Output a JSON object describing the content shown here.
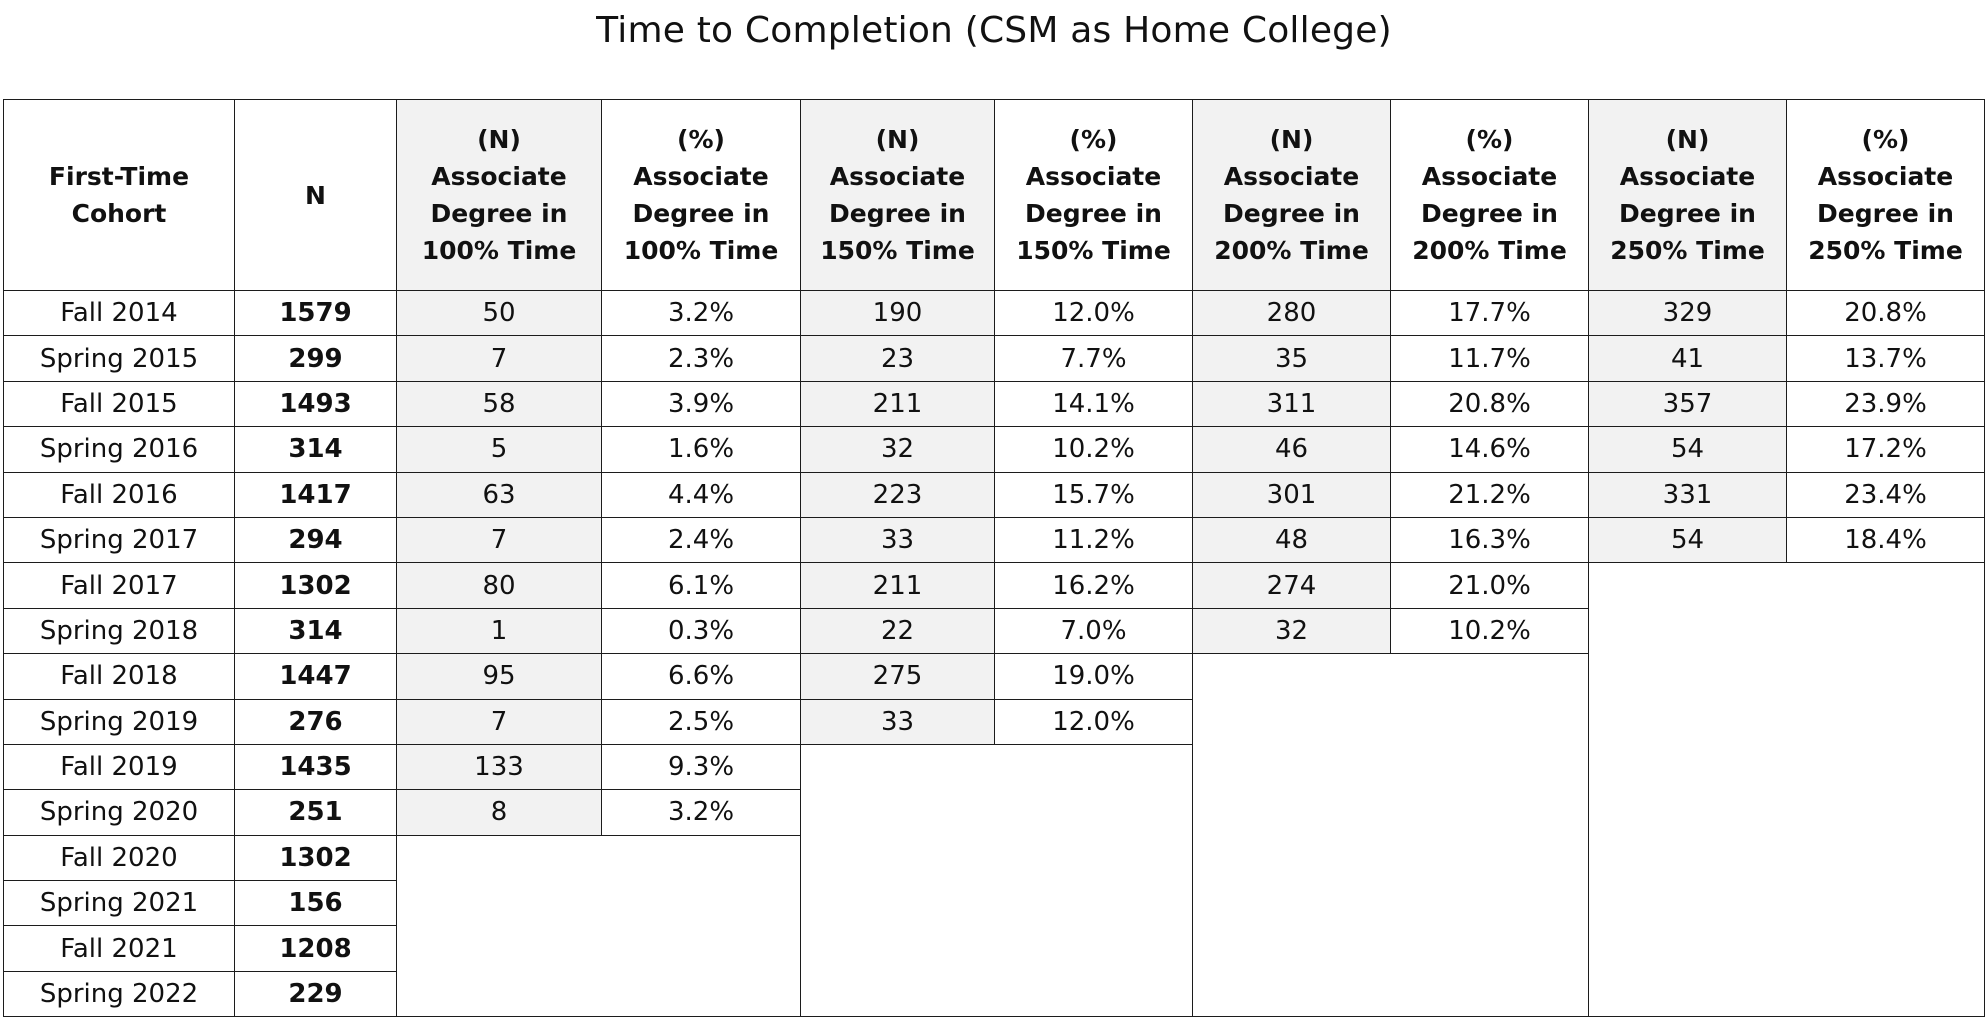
{
  "chart_data": {
    "type": "table",
    "title": "Time to Completion (CSM as Home College)",
    "columns": [
      "First-Time Cohort",
      "N",
      "(N) Associate Degree in 100% Time",
      "(%) Associate Degree in 100% Time",
      "(N) Associate Degree in 150% Time",
      "(%) Associate Degree in 150% Time",
      "(N) Associate Degree in 200% Time",
      "(%) Associate Degree in 200% Time",
      "(N) Associate Degree in 250% Time",
      "(%) Associate Degree in 250% Time"
    ],
    "header_lines": [
      [
        "First-Time",
        "Cohort"
      ],
      [
        "N"
      ],
      [
        "(N)",
        "Associate",
        "Degree in",
        "100% Time"
      ],
      [
        "(%)",
        "Associate",
        "Degree in",
        "100% Time"
      ],
      [
        "(N)",
        "Associate",
        "Degree in",
        "150% Time"
      ],
      [
        "(%)",
        "Associate",
        "Degree in",
        "150% Time"
      ],
      [
        "(N)",
        "Associate",
        "Degree in",
        "200% Time"
      ],
      [
        "(%)",
        "Associate",
        "Degree in",
        "200% Time"
      ],
      [
        "(N)",
        "Associate",
        "Degree in",
        "250% Time"
      ],
      [
        "(%)",
        "Associate",
        "Degree in",
        "250% Time"
      ]
    ],
    "rows": [
      [
        "Fall 2014",
        "1579",
        "50",
        "3.2%",
        "190",
        "12.0%",
        "280",
        "17.7%",
        "329",
        "20.8%"
      ],
      [
        "Spring 2015",
        "299",
        "7",
        "2.3%",
        "23",
        "7.7%",
        "35",
        "11.7%",
        "41",
        "13.7%"
      ],
      [
        "Fall 2015",
        "1493",
        "58",
        "3.9%",
        "211",
        "14.1%",
        "311",
        "20.8%",
        "357",
        "23.9%"
      ],
      [
        "Spring 2016",
        "314",
        "5",
        "1.6%",
        "32",
        "10.2%",
        "46",
        "14.6%",
        "54",
        "17.2%"
      ],
      [
        "Fall 2016",
        "1417",
        "63",
        "4.4%",
        "223",
        "15.7%",
        "301",
        "21.2%",
        "331",
        "23.4%"
      ],
      [
        "Spring 2017",
        "294",
        "7",
        "2.4%",
        "33",
        "11.2%",
        "48",
        "16.3%",
        "54",
        "18.4%"
      ],
      [
        "Fall 2017",
        "1302",
        "80",
        "6.1%",
        "211",
        "16.2%",
        "274",
        "21.0%"
      ],
      [
        "Spring 2018",
        "314",
        "1",
        "0.3%",
        "22",
        "7.0%",
        "32",
        "10.2%"
      ],
      [
        "Fall 2018",
        "1447",
        "95",
        "6.6%",
        "275",
        "19.0%"
      ],
      [
        "Spring 2019",
        "276",
        "7",
        "2.5%",
        "33",
        "12.0%"
      ],
      [
        "Fall 2019",
        "1435",
        "133",
        "9.3%"
      ],
      [
        "Spring 2020",
        "251",
        "8",
        "3.2%"
      ],
      [
        "Fall 2020",
        "1302"
      ],
      [
        "Spring 2021",
        "156"
      ],
      [
        "Fall 2021",
        "1208"
      ],
      [
        "Spring 2022",
        "229"
      ]
    ]
  }
}
